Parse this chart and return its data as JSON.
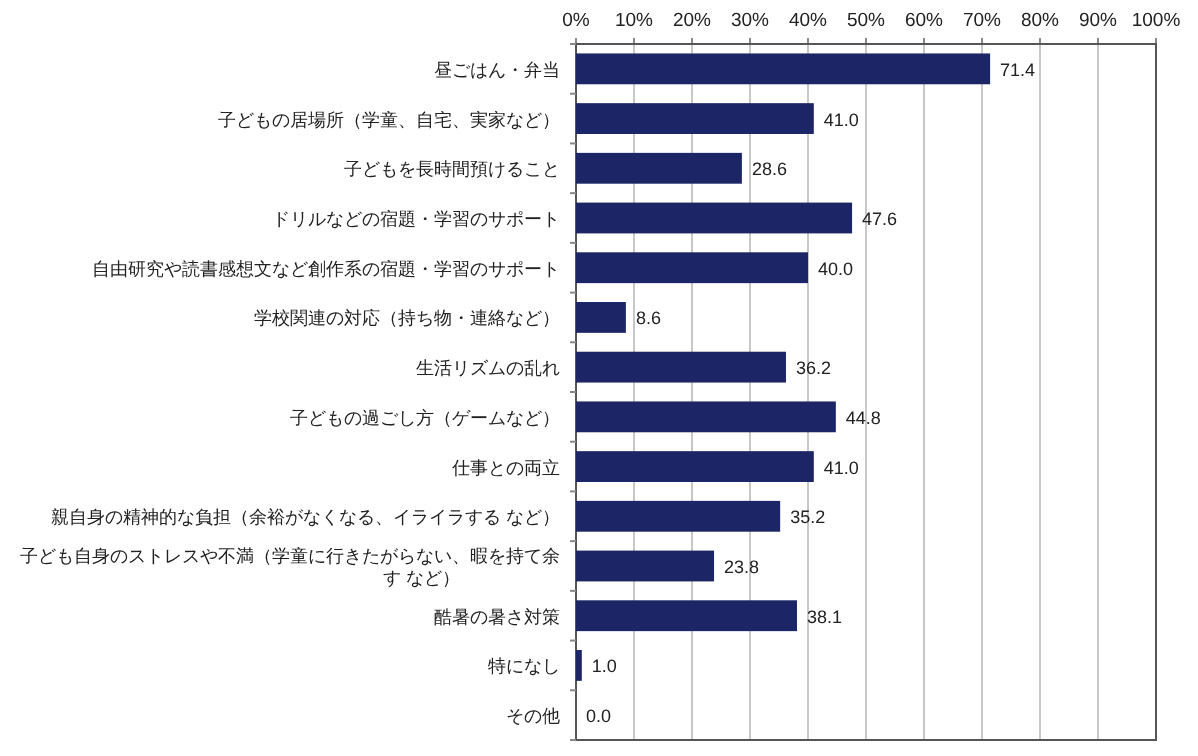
{
  "chart_data": {
    "type": "bar",
    "orientation": "horizontal",
    "categories": [
      "昼ごはん・弁当",
      "子どもの居場所（学童、自宅、実家など）",
      "子どもを長時間預けること",
      "ドリルなどの宿題・学習のサポート",
      "自由研究や読書感想文など創作系の宿題・学習のサポート",
      "学校関連の対応（持ち物・連絡など）",
      "生活リズムの乱れ",
      "子どもの過ごし方（ゲームなど）",
      "仕事との両立",
      "親自身の精神的な負担（余裕がなくなる、イライラする など）",
      "子ども自身のストレスや不満（学童に行きたがらない、暇を持て余す など）",
      "酷暑の暑さ対策",
      "特になし",
      "その他"
    ],
    "values": [
      71.4,
      41.0,
      28.6,
      47.6,
      40.0,
      8.6,
      36.2,
      44.8,
      41.0,
      35.2,
      23.8,
      38.1,
      1.0,
      0.0
    ],
    "value_labels": [
      "71.4",
      "41.0",
      "28.6",
      "47.6",
      "40.0",
      "8.6",
      "36.2",
      "44.8",
      "41.0",
      "35.2",
      "23.8",
      "38.1",
      "1.0",
      "0.0"
    ],
    "color": "#1c2566",
    "xlim": [
      0,
      100
    ],
    "xticks": [
      {
        "value": 0,
        "label": "0%"
      },
      {
        "value": 10,
        "label": "10%"
      },
      {
        "value": 20,
        "label": "20%"
      },
      {
        "value": 30,
        "label": "30%"
      },
      {
        "value": 40,
        "label": "40%"
      },
      {
        "value": 50,
        "label": "50%"
      },
      {
        "value": 60,
        "label": "60%"
      },
      {
        "value": 70,
        "label": "70%"
      },
      {
        "value": 80,
        "label": "80%"
      },
      {
        "value": 90,
        "label": "90%"
      },
      {
        "value": 100,
        "label": "100%"
      }
    ],
    "grid": "x"
  }
}
